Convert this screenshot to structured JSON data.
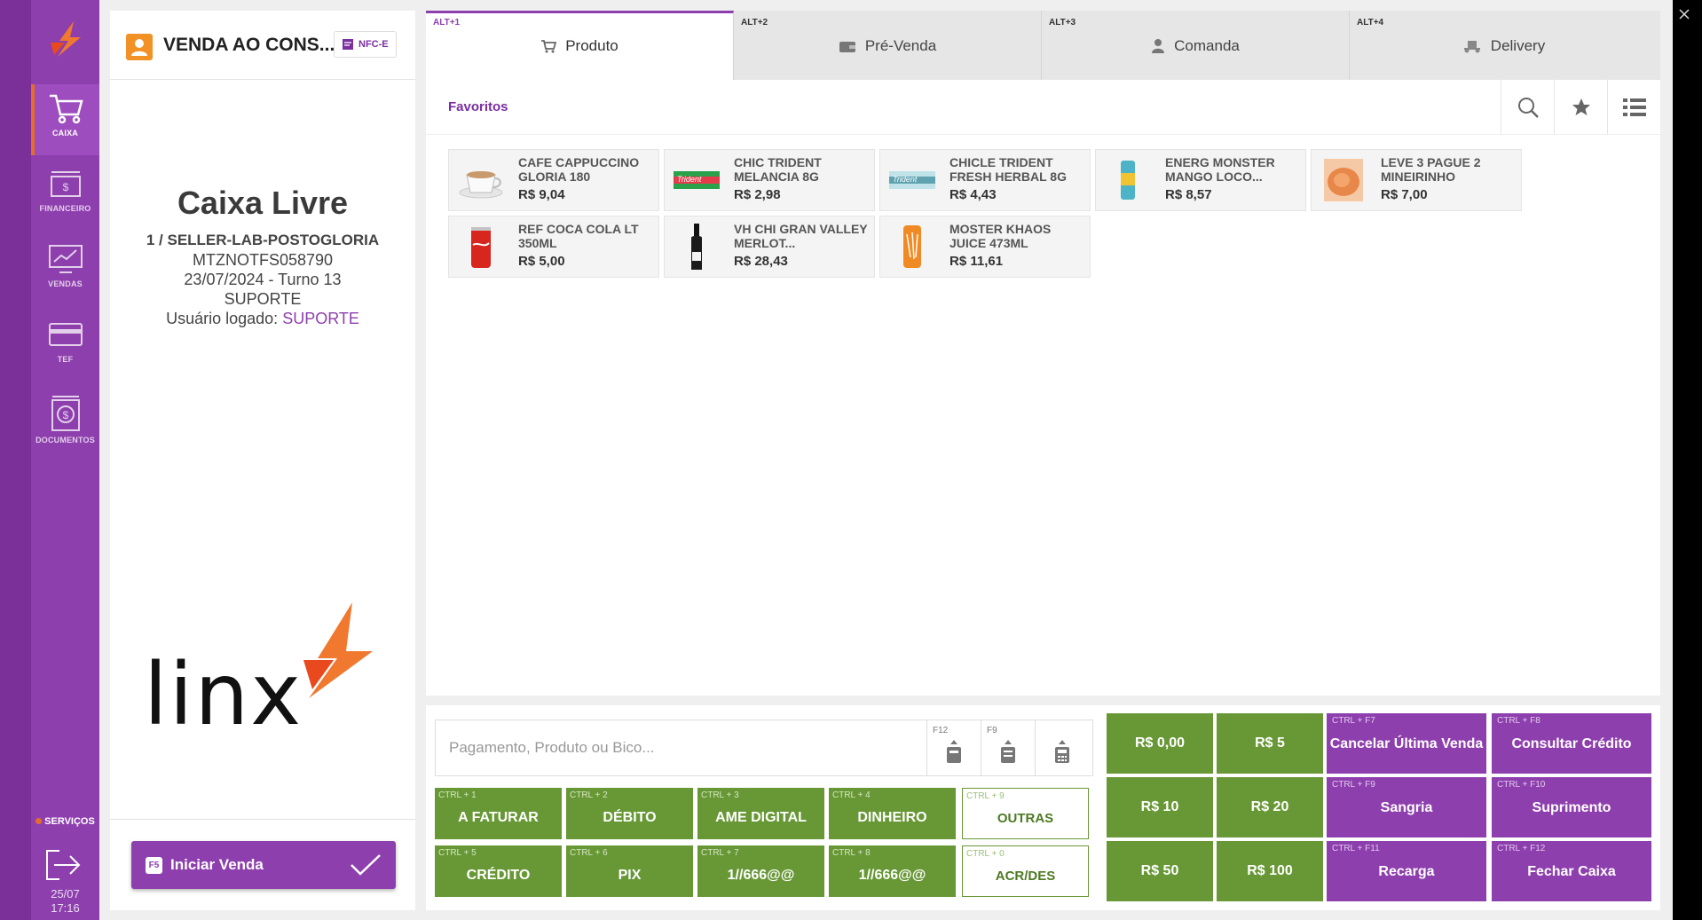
{
  "sidebar": {
    "items": [
      {
        "label": "CAIXA",
        "icon": "cart-icon",
        "active": true
      },
      {
        "label": "FINANCEIRO",
        "icon": "cash-register-icon"
      },
      {
        "label": "VENDAS",
        "icon": "monitor-chart-icon"
      },
      {
        "label": "TEF",
        "icon": "credit-card-icon"
      },
      {
        "label": "DOCUMENTOS",
        "icon": "document-money-icon"
      }
    ],
    "servicos": "SERVIÇOS",
    "date": "25/07",
    "time": "17:16"
  },
  "status": {
    "title": "VENDA AO CONS...",
    "badge": "NFC-E",
    "caixa": "Caixa Livre",
    "seller": "1 / SELLER-LAB-POSTOGLORIA",
    "serial": "MTZNOTFS058790",
    "date_turno": "23/07/2024 - Turno 13",
    "suporte": "SUPORTE",
    "user_label": "Usuário logado:",
    "user_name": "SUPORTE",
    "iniciar_key": "F5",
    "iniciar_label": "Iniciar Venda"
  },
  "tabs": [
    {
      "hotkey": "ALT+1",
      "label": "Produto",
      "icon": "cart-icon",
      "active": true
    },
    {
      "hotkey": "ALT+2",
      "label": "Pré-Venda",
      "icon": "wallet-icon"
    },
    {
      "hotkey": "ALT+3",
      "label": "Comanda",
      "icon": "person-icon"
    },
    {
      "hotkey": "ALT+4",
      "label": "Delivery",
      "icon": "delivery-icon"
    }
  ],
  "favorites": {
    "title": "Favoritos",
    "products": [
      {
        "name": "CAFE CAPPUCCINO GLORIA 180",
        "price": "R$ 9,04"
      },
      {
        "name": "CHIC TRIDENT MELANCIA 8G",
        "price": "R$ 2,98"
      },
      {
        "name": "CHICLE TRIDENT FRESH HERBAL 8G",
        "price": "R$ 4,43"
      },
      {
        "name": "ENERG MONSTER MANGO LOCO...",
        "price": "R$ 8,57"
      },
      {
        "name": "LEVE 3 PAGUE 2 MINEIRINHO",
        "price": "R$ 7,00"
      },
      {
        "name": "REF COCA COLA LT 350ML",
        "price": "R$ 5,00"
      },
      {
        "name": "VH CHI GRAN VALLEY MERLOT...",
        "price": "R$ 28,43"
      },
      {
        "name": "MOSTER KHAOS JUICE 473ML",
        "price": "R$ 11,61"
      }
    ]
  },
  "search": {
    "placeholder": "Pagamento, Produto ou Bico...",
    "f12": "F12",
    "f9": "F9"
  },
  "payments": [
    {
      "key": "CTRL + 1",
      "label": "A FATURAR"
    },
    {
      "key": "CTRL + 2",
      "label": "DÉBITO"
    },
    {
      "key": "CTRL + 3",
      "label": "AME DIGITAL"
    },
    {
      "key": "CTRL + 4",
      "label": "DINHEIRO"
    },
    {
      "key": "CTRL + 9",
      "label": "OUTRAS"
    },
    {
      "key": "CTRL + 5",
      "label": "CRÉDITO"
    },
    {
      "key": "CTRL + 6",
      "label": "PIX"
    },
    {
      "key": "CTRL + 7",
      "label": "1//666@@"
    },
    {
      "key": "CTRL + 8",
      "label": "1//666@@"
    },
    {
      "key": "CTRL + 0",
      "label": "ACR/DES"
    }
  ],
  "cash": [
    "R$ 0,00",
    "R$ 5",
    "R$ 10",
    "R$ 20",
    "R$ 50",
    "R$ 100"
  ],
  "actions": [
    {
      "key": "CTRL + F7",
      "label": "Cancelar Última Venda"
    },
    {
      "key": "CTRL + F8",
      "label": "Consultar Crédito"
    },
    {
      "key": "CTRL + F9",
      "label": "Sangria"
    },
    {
      "key": "CTRL + F10",
      "label": "Suprimento"
    },
    {
      "key": "CTRL + F11",
      "label": "Recarga"
    },
    {
      "key": "CTRL + F12",
      "label": "Fechar Caixa"
    }
  ],
  "colors": {
    "brand": "#8e3fae",
    "accent": "#e56d2b",
    "pay": "#689836"
  }
}
